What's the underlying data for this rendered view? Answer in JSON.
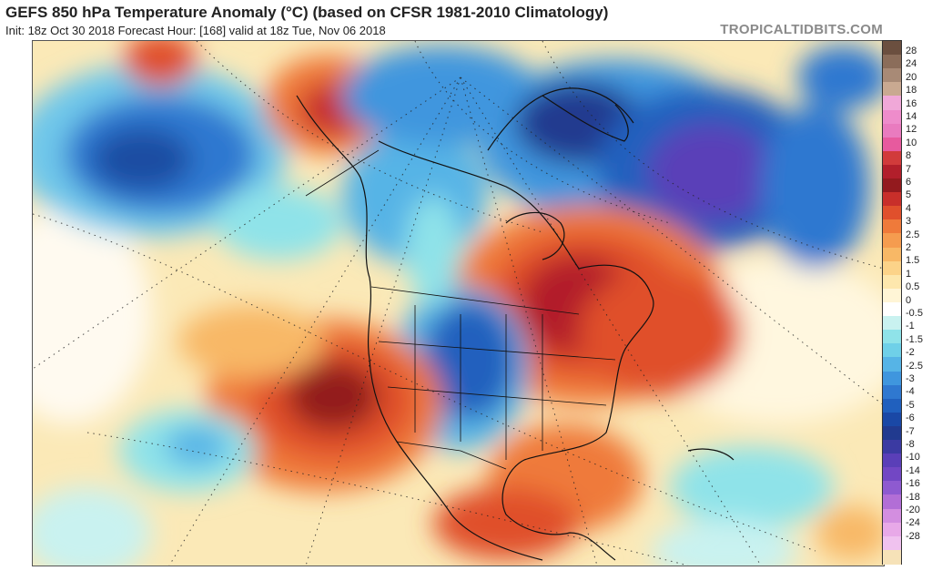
{
  "header": {
    "title": "GEFS 850 hPa Temperature Anomaly (°C) (based on CFSR 1981-2010 Climatology)",
    "subtitle": "Init: 18z Oct 30 2018   Forecast Hour: [168]   valid at 18z Tue, Nov 06 2018",
    "brand": "TROPICALTIDBITS.COM"
  },
  "colorbar": {
    "labels": [
      "28",
      "24",
      "20",
      "18",
      "16",
      "14",
      "12",
      "10",
      "8",
      "7",
      "6",
      "5",
      "4",
      "3",
      "2.5",
      "2",
      "1.5",
      "1",
      "0.5",
      "0",
      "-0.5",
      "-1",
      "-1.5",
      "-2",
      "-2.5",
      "-3",
      "-4",
      "-5",
      "-6",
      "-7",
      "-8",
      "-10",
      "-14",
      "-16",
      "-18",
      "-20",
      "-24",
      "-28"
    ],
    "colors": [
      "#6b4f3f",
      "#8b6d5a",
      "#a88a76",
      "#c9a991",
      "#f0a8d8",
      "#ee8ccb",
      "#e97bbf",
      "#e75a9e",
      "#d13b3b",
      "#b21f2b",
      "#931a1e",
      "#c82f2a",
      "#e0502c",
      "#ef7a3a",
      "#f59c4f",
      "#f8b866",
      "#fcd389",
      "#fde7ad",
      "#fff5d6",
      "#ffffff",
      "#c9f2f0",
      "#8fe3e9",
      "#6fd0e8",
      "#56b4e6",
      "#3f96de",
      "#2f78d0",
      "#2060be",
      "#1a48a6",
      "#213a8f",
      "#3b3aa2",
      "#5a3fb8",
      "#7247c4",
      "#8e5ad0",
      "#b26ed6",
      "#d38ee0",
      "#e8a9e8",
      "#f0c2ef",
      "#f6e2b8"
    ]
  },
  "map": {
    "region": "North America",
    "anomaly_centers": [
      {
        "area": "California / Great Basin",
        "sign": "warm"
      },
      {
        "area": "Great Lakes / Northeast US",
        "sign": "warm"
      },
      {
        "area": "Northern Plains",
        "sign": "cold"
      },
      {
        "area": "Greenland",
        "sign": "cold"
      },
      {
        "area": "Labrador Sea / North Atlantic",
        "sign": "cold"
      },
      {
        "area": "Gulf of Alaska",
        "sign": "cold"
      }
    ]
  }
}
